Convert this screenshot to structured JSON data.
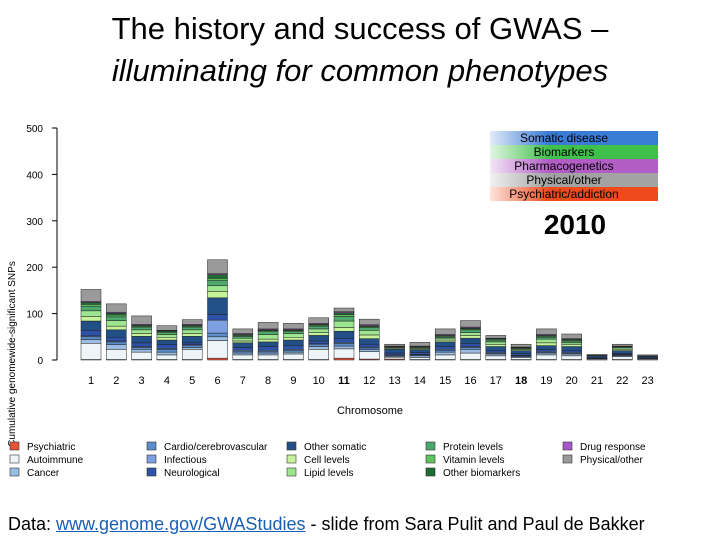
{
  "slide": {
    "title_line1": "The history and success of GWAS –",
    "title_line2": "illuminating for common phenotypes",
    "footer_prefix": "Data: ",
    "footer_link": "www.genome.gov/GWAStudies",
    "footer_suffix": " - slide from Sara Pulit and Paul de Bakker"
  },
  "colors": {
    "Psychiatric": "#e8533a",
    "Autoimmune": "#eef5f8",
    "Cancer": "#9bbde3",
    "Cardio/cerebrovascular": "#5b8ec9",
    "Infectious": "#7e9fe0",
    "Neurological": "#2e52a8",
    "Other somatic": "#214f86",
    "Cell levels": "#c6f29a",
    "Lipid levels": "#9ee58f",
    "Protein levels": "#4ea86e",
    "Vitamin levels": "#5fc45f",
    "Other biomarkers": "#1f6b34",
    "Drug response": "#a857c9",
    "Physical/other": "#9a9a9a"
  },
  "chart_data": {
    "type": "bar",
    "stacked": true,
    "ylabel": "Cumulative genomewide-significant SNPs",
    "xlabel": "Chromosome",
    "ylim": [
      0,
      500
    ],
    "yticks": [
      0,
      100,
      200,
      300,
      400,
      500
    ],
    "grid": false,
    "year": "2010",
    "categories": [
      "1",
      "2",
      "3",
      "4",
      "5",
      "6",
      "7",
      "8",
      "9",
      "10",
      "11",
      "12",
      "13",
      "14",
      "15",
      "16",
      "17",
      "18",
      "19",
      "20",
      "21",
      "22",
      "23"
    ],
    "bold_categories": [
      "11",
      "18"
    ],
    "series": [
      {
        "name": "Psychiatric",
        "values": [
          1,
          1,
          1,
          1,
          1,
          4,
          1,
          1,
          1,
          1,
          4,
          2,
          2,
          1,
          1,
          1,
          1,
          1,
          1,
          1,
          0,
          1,
          1
        ]
      },
      {
        "name": "Autoimmune",
        "values": [
          35,
          22,
          16,
          10,
          22,
          38,
          10,
          10,
          12,
          22,
          20,
          16,
          4,
          4,
          10,
          14,
          8,
          4,
          10,
          8,
          2,
          6,
          2
        ]
      },
      {
        "name": "Cancer",
        "values": [
          8,
          10,
          6,
          6,
          4,
          8,
          4,
          4,
          4,
          6,
          6,
          4,
          2,
          4,
          6,
          8,
          4,
          2,
          4,
          4,
          1,
          2,
          0
        ]
      },
      {
        "name": "Cardio/cerebrovascular",
        "values": [
          6,
          6,
          4,
          6,
          4,
          8,
          4,
          4,
          4,
          4,
          6,
          4,
          2,
          2,
          4,
          4,
          2,
          2,
          2,
          2,
          1,
          2,
          1
        ]
      },
      {
        "name": "Infectious",
        "values": [
          2,
          2,
          2,
          2,
          2,
          28,
          2,
          2,
          2,
          2,
          2,
          2,
          1,
          1,
          2,
          2,
          2,
          1,
          2,
          2,
          0,
          1,
          0
        ]
      },
      {
        "name": "Neurological",
        "values": [
          12,
          8,
          8,
          8,
          4,
          12,
          6,
          8,
          8,
          6,
          8,
          6,
          4,
          4,
          6,
          6,
          4,
          4,
          4,
          4,
          2,
          2,
          2
        ]
      },
      {
        "name": "Other somatic",
        "values": [
          20,
          16,
          14,
          10,
          14,
          36,
          10,
          10,
          12,
          12,
          16,
          12,
          8,
          6,
          10,
          12,
          8,
          6,
          8,
          8,
          3,
          6,
          2
        ]
      },
      {
        "name": "Cell levels",
        "values": [
          10,
          8,
          6,
          6,
          6,
          14,
          4,
          6,
          6,
          6,
          8,
          8,
          2,
          2,
          4,
          6,
          4,
          2,
          6,
          4,
          0,
          2,
          0
        ]
      },
      {
        "name": "Lipid levels",
        "values": [
          12,
          12,
          8,
          6,
          8,
          12,
          6,
          10,
          8,
          8,
          14,
          10,
          2,
          2,
          4,
          6,
          6,
          2,
          8,
          4,
          0,
          4,
          0
        ]
      },
      {
        "name": "Protein levels",
        "values": [
          10,
          8,
          6,
          4,
          6,
          12,
          4,
          6,
          4,
          6,
          10,
          6,
          1,
          2,
          2,
          6,
          4,
          2,
          4,
          4,
          0,
          2,
          0
        ]
      },
      {
        "name": "Vitamin levels",
        "values": [
          4,
          4,
          2,
          2,
          2,
          4,
          2,
          2,
          2,
          2,
          4,
          2,
          0,
          0,
          2,
          2,
          2,
          0,
          2,
          2,
          0,
          0,
          0
        ]
      },
      {
        "name": "Other biomarkers",
        "values": [
          4,
          4,
          2,
          2,
          2,
          8,
          2,
          2,
          2,
          2,
          4,
          2,
          1,
          1,
          2,
          2,
          1,
          1,
          2,
          2,
          0,
          1,
          0
        ]
      },
      {
        "name": "Drug response",
        "values": [
          2,
          2,
          2,
          1,
          2,
          2,
          2,
          2,
          2,
          2,
          2,
          2,
          1,
          1,
          2,
          2,
          1,
          1,
          2,
          1,
          1,
          1,
          1
        ]
      },
      {
        "name": "Physical/other",
        "values": [
          26,
          18,
          18,
          10,
          10,
          30,
          10,
          14,
          12,
          12,
          8,
          12,
          4,
          8,
          12,
          14,
          6,
          6,
          12,
          10,
          2,
          4,
          2
        ]
      }
    ],
    "legend": {
      "placement": "bottom",
      "columns": [
        [
          "Psychiatric",
          "Autoimmune",
          "Cancer"
        ],
        [
          "Cardio/cerebrovascular",
          "Infectious",
          "Neurological"
        ],
        [
          "Other somatic",
          "Cell levels",
          "Lipid levels"
        ],
        [
          "Protein levels",
          "Vitamin levels",
          "Other biomarkers"
        ],
        [
          "Drug response",
          "Physical/other"
        ]
      ]
    },
    "key": {
      "placement": "top-right",
      "items": [
        {
          "label": "Somatic disease",
          "color": "#3a7bd5"
        },
        {
          "label": "Biomarkers",
          "color": "#3fc04a"
        },
        {
          "label": "Pharmacogenetics",
          "color": "#b25cc6"
        },
        {
          "label": "Physical/other",
          "color": "#a3a3a3"
        },
        {
          "label": "Psychiatric/addiction",
          "color": "#ee4a1c"
        }
      ]
    }
  }
}
